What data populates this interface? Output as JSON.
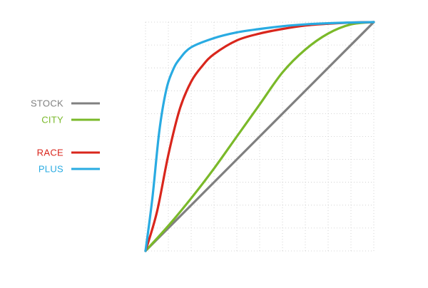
{
  "chart_data": {
    "type": "line",
    "title": "",
    "xlabel": "",
    "ylabel": "",
    "xlim": [
      0,
      1
    ],
    "ylim": [
      0,
      1
    ],
    "grid": true,
    "legend_position": "left",
    "series": [
      {
        "name": "STOCK",
        "color": "#808080",
        "x": [
          0,
          0.25,
          0.5,
          0.75,
          1
        ],
        "y": [
          0,
          0.25,
          0.5,
          0.75,
          1
        ]
      },
      {
        "name": "CITY",
        "color": "#7ab929",
        "x": [
          0,
          0.1,
          0.2,
          0.3,
          0.4,
          0.5,
          0.6,
          0.7,
          0.8,
          0.9,
          1
        ],
        "y": [
          0,
          0.11,
          0.23,
          0.36,
          0.5,
          0.64,
          0.78,
          0.88,
          0.95,
          0.99,
          1
        ]
      },
      {
        "name": "RACE",
        "color": "#d9261c",
        "x": [
          0,
          0.05,
          0.1,
          0.15,
          0.2,
          0.25,
          0.3,
          0.4,
          0.5,
          0.6,
          0.7,
          0.8,
          0.9,
          1
        ],
        "y": [
          0,
          0.17,
          0.42,
          0.62,
          0.74,
          0.81,
          0.86,
          0.92,
          0.95,
          0.97,
          0.985,
          0.993,
          0.998,
          1
        ]
      },
      {
        "name": "PLUS",
        "color": "#29abe2",
        "x": [
          0,
          0.03,
          0.06,
          0.09,
          0.12,
          0.15,
          0.2,
          0.3,
          0.4,
          0.5,
          0.6,
          0.7,
          0.8,
          0.9,
          1
        ],
        "y": [
          0,
          0.23,
          0.52,
          0.7,
          0.79,
          0.84,
          0.89,
          0.93,
          0.955,
          0.97,
          0.982,
          0.99,
          0.995,
          0.998,
          1
        ]
      }
    ]
  }
}
